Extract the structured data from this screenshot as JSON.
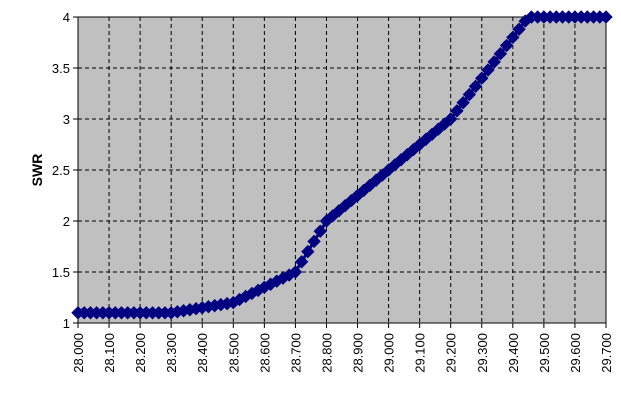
{
  "chart_data": {
    "type": "line",
    "title": "",
    "xlabel": "",
    "ylabel": "SWR",
    "xlim": [
      28.0,
      29.7
    ],
    "ylim": [
      1,
      4
    ],
    "x_ticks": [
      "28.000",
      "28.100",
      "28.200",
      "28.300",
      "28.400",
      "28.500",
      "28.600",
      "28.700",
      "28.800",
      "28.900",
      "29.000",
      "29.100",
      "29.200",
      "29.300",
      "29.400",
      "29.500",
      "29.600",
      "29.700"
    ],
    "y_ticks": [
      "1",
      "1.5",
      "2",
      "2.5",
      "3",
      "3.5",
      "4"
    ],
    "grid": true,
    "legend": "none",
    "plot_background": "#c0c0c0",
    "series_color": "#000080",
    "marker": "diamond",
    "series": [
      {
        "x": [
          28.0,
          28.02,
          28.04,
          28.06,
          28.08,
          28.1,
          28.12,
          28.14,
          28.16,
          28.18,
          28.2,
          28.22,
          28.24,
          28.26,
          28.28,
          28.3,
          28.32,
          28.34,
          28.36,
          28.38,
          28.4,
          28.42,
          28.44,
          28.46,
          28.48,
          28.5,
          28.52,
          28.54,
          28.56,
          28.58,
          28.6,
          28.62,
          28.64,
          28.66,
          28.68,
          28.7,
          28.72,
          28.74,
          28.76,
          28.78,
          28.8,
          28.82,
          28.84,
          28.86,
          28.88,
          28.9,
          28.92,
          28.94,
          28.96,
          28.98,
          29.0,
          29.02,
          29.04,
          29.06,
          29.08,
          29.1,
          29.12,
          29.14,
          29.16,
          29.18,
          29.2,
          29.22,
          29.24,
          29.26,
          29.28,
          29.3,
          29.32,
          29.34,
          29.36,
          29.38,
          29.4,
          29.42,
          29.44,
          29.46,
          29.48,
          29.5,
          29.52,
          29.54,
          29.56,
          29.58,
          29.6,
          29.62,
          29.64,
          29.66,
          29.68,
          29.7
        ],
        "values": [
          1.1,
          1.1,
          1.1,
          1.1,
          1.1,
          1.1,
          1.1,
          1.1,
          1.1,
          1.1,
          1.1,
          1.1,
          1.1,
          1.1,
          1.1,
          1.1,
          1.11,
          1.12,
          1.13,
          1.14,
          1.15,
          1.16,
          1.17,
          1.18,
          1.19,
          1.2,
          1.23,
          1.26,
          1.29,
          1.32,
          1.35,
          1.38,
          1.41,
          1.44,
          1.47,
          1.5,
          1.6,
          1.7,
          1.8,
          1.9,
          2.0,
          2.05,
          2.1,
          2.15,
          2.2,
          2.25,
          2.3,
          2.35,
          2.4,
          2.45,
          2.5,
          2.55,
          2.6,
          2.65,
          2.7,
          2.75,
          2.8,
          2.85,
          2.9,
          2.95,
          3.0,
          3.08,
          3.16,
          3.24,
          3.32,
          3.4,
          3.48,
          3.56,
          3.64,
          3.72,
          3.8,
          3.88,
          3.96,
          4.0,
          4.0,
          4.0,
          4.0,
          4.0,
          4.0,
          4.0,
          4.0,
          4.0,
          4.0,
          4.0,
          4.0,
          4.0
        ]
      }
    ]
  }
}
